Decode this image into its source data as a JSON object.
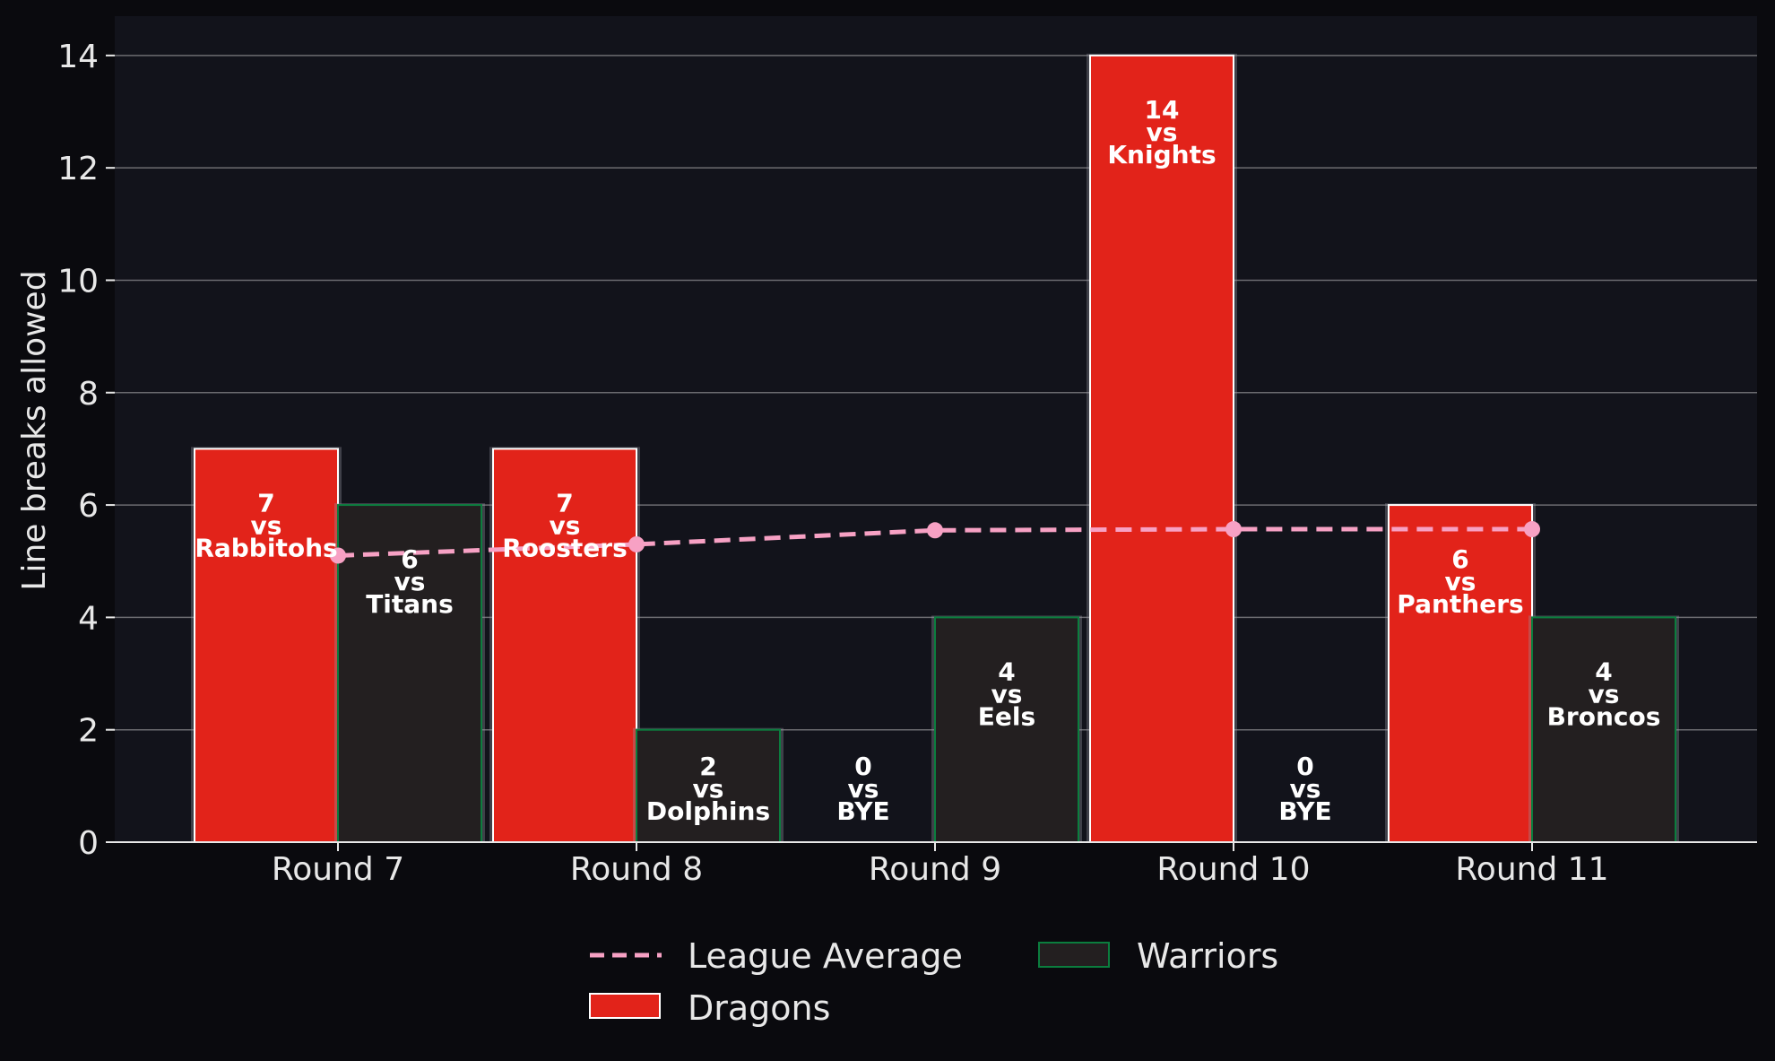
{
  "chart_data": {
    "type": "bar",
    "categories": [
      "Round 7",
      "Round 8",
      "Round 9",
      "Round 10",
      "Round 11"
    ],
    "ylabel": "Line breaks allowed",
    "xlabel": "",
    "ylim": [
      0,
      14.7
    ],
    "yticks": [
      0,
      2,
      4,
      6,
      8,
      10,
      12,
      14
    ],
    "grid": true,
    "legend_position": "bottom-center",
    "background": "#12131b",
    "series": [
      {
        "name": "Dragons",
        "color": "#e2231a",
        "edge": "#ffffff",
        "values": [
          7,
          7,
          0,
          14,
          6
        ],
        "opponents": [
          "Rabbitohs",
          "Roosters",
          "BYE",
          "Knights",
          "Panthers"
        ]
      },
      {
        "name": "Warriors",
        "color": "#231f20",
        "edge": "#0b7d3e",
        "values": [
          6,
          2,
          4,
          0,
          4
        ],
        "opponents": [
          "Titans",
          "Dolphins",
          "Eels",
          "BYE",
          "Broncos"
        ]
      }
    ],
    "line": {
      "name": "League Average",
      "color": "#f7a1c4",
      "style": "dashed",
      "values": [
        5.1,
        5.3,
        5.55,
        5.57,
        5.57
      ]
    },
    "label_vs": "vs"
  }
}
